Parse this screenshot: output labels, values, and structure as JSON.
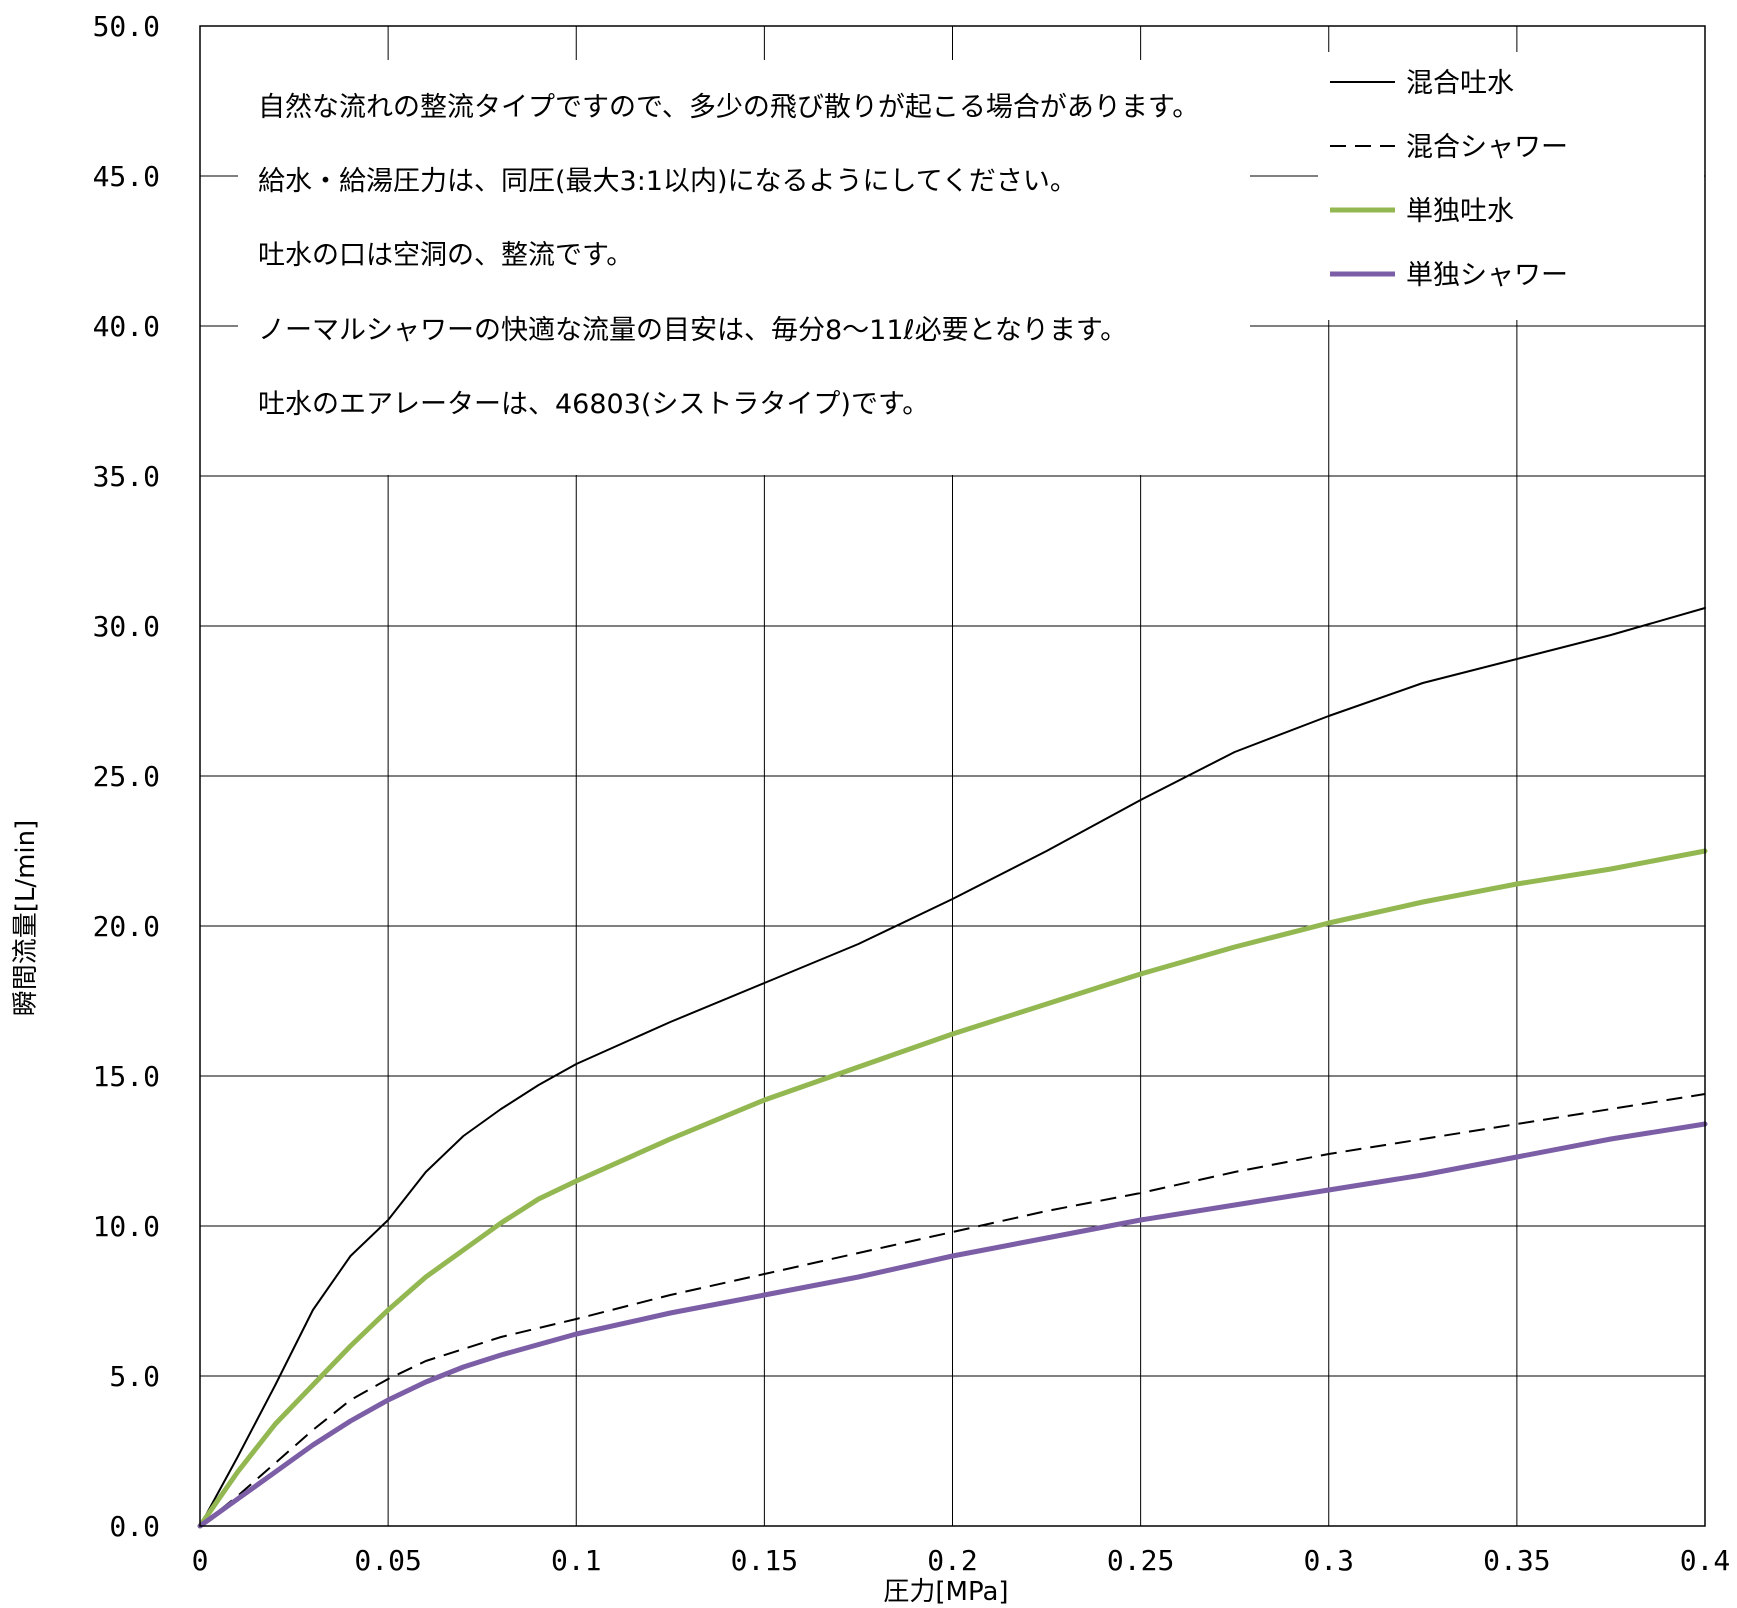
{
  "chart_data": {
    "type": "line",
    "xlabel": "圧力[MPa]",
    "ylabel": "瞬間流量[L/min]",
    "xlim": [
      0,
      0.4
    ],
    "ylim": [
      0,
      50
    ],
    "x_ticks": [
      "0",
      "0.05",
      "0.1",
      "0.15",
      "0.2",
      "0.25",
      "0.3",
      "0.35",
      "0.4"
    ],
    "y_ticks": [
      "0.0",
      "5.0",
      "10.0",
      "15.0",
      "20.0",
      "25.0",
      "30.0",
      "35.0",
      "40.0",
      "45.0",
      "50.0"
    ],
    "grid": true,
    "legend_position": "top-right",
    "series": [
      {
        "name": "混合吐水",
        "color": "#000000",
        "style": "solid",
        "points": [
          [
            0,
            0
          ],
          [
            0.01,
            2.3
          ],
          [
            0.02,
            4.7
          ],
          [
            0.03,
            7.2
          ],
          [
            0.04,
            9.0
          ],
          [
            0.05,
            10.2
          ],
          [
            0.06,
            11.8
          ],
          [
            0.07,
            13.0
          ],
          [
            0.08,
            13.9
          ],
          [
            0.09,
            14.7
          ],
          [
            0.1,
            15.4
          ],
          [
            0.125,
            16.8
          ],
          [
            0.15,
            18.1
          ],
          [
            0.175,
            19.4
          ],
          [
            0.2,
            20.9
          ],
          [
            0.225,
            22.5
          ],
          [
            0.25,
            24.2
          ],
          [
            0.275,
            25.8
          ],
          [
            0.3,
            27.0
          ],
          [
            0.325,
            28.1
          ],
          [
            0.35,
            28.9
          ],
          [
            0.375,
            29.7
          ],
          [
            0.4,
            30.6
          ]
        ]
      },
      {
        "name": "混合シャワー",
        "color": "#000000",
        "style": "dashed",
        "points": [
          [
            0,
            0
          ],
          [
            0.01,
            1.0
          ],
          [
            0.02,
            2.1
          ],
          [
            0.03,
            3.2
          ],
          [
            0.04,
            4.2
          ],
          [
            0.05,
            4.9
          ],
          [
            0.06,
            5.5
          ],
          [
            0.07,
            5.9
          ],
          [
            0.08,
            6.3
          ],
          [
            0.1,
            6.9
          ],
          [
            0.125,
            7.7
          ],
          [
            0.15,
            8.4
          ],
          [
            0.175,
            9.1
          ],
          [
            0.2,
            9.8
          ],
          [
            0.225,
            10.5
          ],
          [
            0.25,
            11.1
          ],
          [
            0.275,
            11.8
          ],
          [
            0.3,
            12.4
          ],
          [
            0.325,
            12.9
          ],
          [
            0.35,
            13.4
          ],
          [
            0.375,
            13.9
          ],
          [
            0.4,
            14.4
          ]
        ]
      },
      {
        "name": "単独吐水",
        "color": "#93b852",
        "style": "solid",
        "points": [
          [
            0,
            0
          ],
          [
            0.01,
            1.8
          ],
          [
            0.02,
            3.4
          ],
          [
            0.03,
            4.7
          ],
          [
            0.04,
            6.0
          ],
          [
            0.05,
            7.2
          ],
          [
            0.06,
            8.3
          ],
          [
            0.07,
            9.2
          ],
          [
            0.08,
            10.1
          ],
          [
            0.09,
            10.9
          ],
          [
            0.1,
            11.5
          ],
          [
            0.125,
            12.9
          ],
          [
            0.15,
            14.2
          ],
          [
            0.175,
            15.3
          ],
          [
            0.2,
            16.4
          ],
          [
            0.225,
            17.4
          ],
          [
            0.25,
            18.4
          ],
          [
            0.275,
            19.3
          ],
          [
            0.3,
            20.1
          ],
          [
            0.325,
            20.8
          ],
          [
            0.35,
            21.4
          ],
          [
            0.375,
            21.9
          ],
          [
            0.4,
            22.5
          ]
        ]
      },
      {
        "name": "単独シャワー",
        "color": "#7c5ea6",
        "style": "solid",
        "points": [
          [
            0,
            0
          ],
          [
            0.01,
            0.9
          ],
          [
            0.02,
            1.8
          ],
          [
            0.03,
            2.7
          ],
          [
            0.04,
            3.5
          ],
          [
            0.05,
            4.2
          ],
          [
            0.06,
            4.8
          ],
          [
            0.07,
            5.3
          ],
          [
            0.08,
            5.7
          ],
          [
            0.1,
            6.4
          ],
          [
            0.125,
            7.1
          ],
          [
            0.15,
            7.7
          ],
          [
            0.175,
            8.3
          ],
          [
            0.2,
            9.0
          ],
          [
            0.225,
            9.6
          ],
          [
            0.25,
            10.2
          ],
          [
            0.275,
            10.7
          ],
          [
            0.3,
            11.2
          ],
          [
            0.325,
            11.7
          ],
          [
            0.35,
            12.3
          ],
          [
            0.375,
            12.9
          ],
          [
            0.4,
            13.4
          ]
        ]
      }
    ],
    "annotations": [
      "自然な流れの整流タイプですので、多少の飛び散りが起こる場合があります。",
      "給水・給湯圧力は、同圧(最大3:1以内)になるようにしてください。",
      "吐水の口は空洞の、整流です。",
      "ノーマルシャワーの快適な流量の目安は、毎分8～11ℓ必要となります。",
      "吐水のエアレーターは、46803(シストラタイプ)です。"
    ]
  }
}
